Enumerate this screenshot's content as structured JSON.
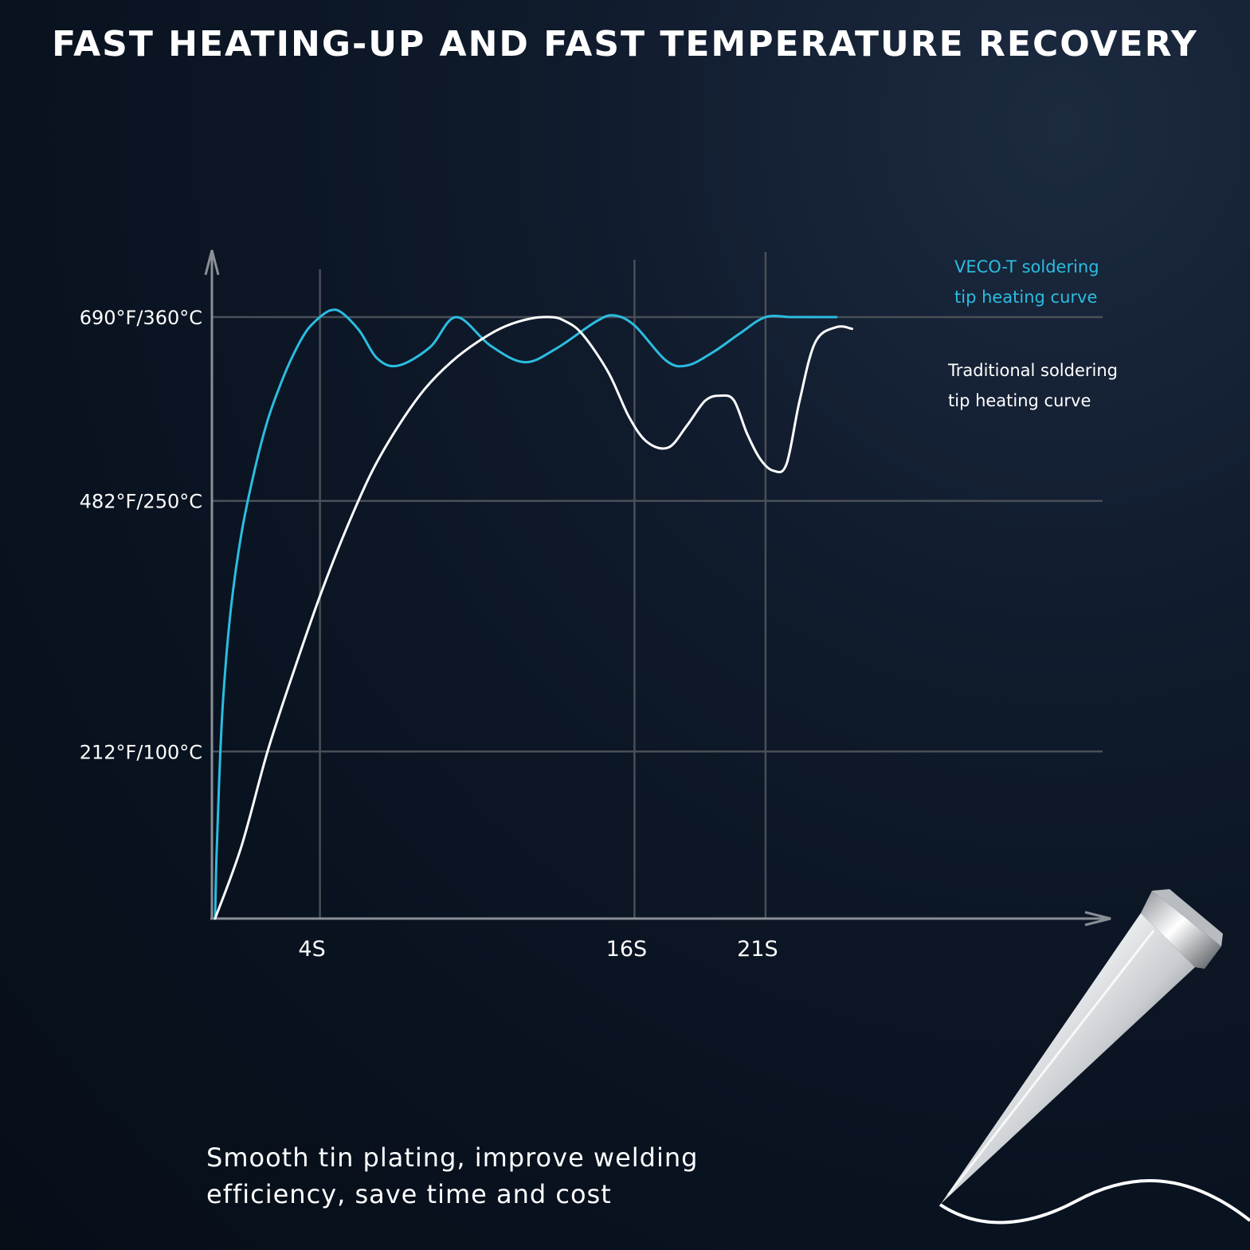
{
  "chart_data": {
    "type": "line",
    "title": "FAST HEATING-UP AND FAST TEMPERATURE RECOVERY",
    "xlabel": "",
    "ylabel": "",
    "x_ticks": [
      {
        "value": 4,
        "label": "4S"
      },
      {
        "value": 16,
        "label": "16S"
      },
      {
        "value": 21,
        "label": "21S"
      }
    ],
    "y_ticks": [
      {
        "value": 100,
        "label": "212°F/100°C"
      },
      {
        "value": 250,
        "label": "482°F/250°C"
      },
      {
        "value": 360,
        "label": "690°F/360°C"
      }
    ],
    "xlim": [
      0,
      24.5
    ],
    "ylim": [
      0,
      385
    ],
    "grid": true,
    "series": [
      {
        "name": "VECO-T soldering tip heating curve",
        "label_lines": [
          "VECO-T soldering",
          "tip heating curve"
        ],
        "color": "#2bbde0",
        "x": [
          0,
          0.05,
          0.15,
          0.3,
          0.6,
          1.0,
          1.5,
          2.0,
          2.5,
          3.0,
          3.5,
          4.0,
          4.4,
          4.8,
          5.5,
          6.2,
          7.0,
          8.2,
          9.2,
          10.5,
          11.8,
          13.0,
          14.5,
          15.2,
          16.0,
          17.2,
          18.0,
          19.0,
          20.0,
          21.0,
          22.0,
          23.0,
          23.7
        ],
        "y": [
          0,
          35,
          80,
          130,
          185,
          230,
          268,
          298,
          320,
          338,
          352,
          360,
          364,
          363,
          352,
          335,
          331,
          342,
          360,
          343,
          333,
          341,
          357,
          361,
          355,
          334,
          331,
          339,
          350,
          360,
          360,
          360,
          360
        ]
      },
      {
        "name": "Traditional soldering tip heating curve",
        "label_lines": [
          "Traditional soldering",
          "tip heating curve"
        ],
        "color": "#ffffff",
        "x": [
          0,
          1.0,
          2.0,
          3.0,
          4.0,
          5.0,
          6.0,
          7.0,
          8.0,
          9.0,
          10.0,
          11.0,
          12.0,
          12.8,
          13.3,
          14.0,
          15.0,
          15.8,
          16.5,
          17.3,
          18.0,
          18.7,
          19.3,
          19.8,
          20.3,
          20.8,
          21.3,
          21.8,
          22.3,
          22.9,
          23.7,
          24.3
        ],
        "y": [
          0,
          43,
          100,
          148,
          193,
          233,
          268,
          295,
          317,
          333,
          345,
          354,
          359,
          360,
          358,
          350,
          327,
          300,
          285,
          282,
          295,
          310,
          313,
          310,
          290,
          275,
          268,
          272,
          310,
          345,
          354,
          353
        ]
      }
    ]
  },
  "caption": "Smooth tin plating, improve welding\nefficiency, save time and cost"
}
